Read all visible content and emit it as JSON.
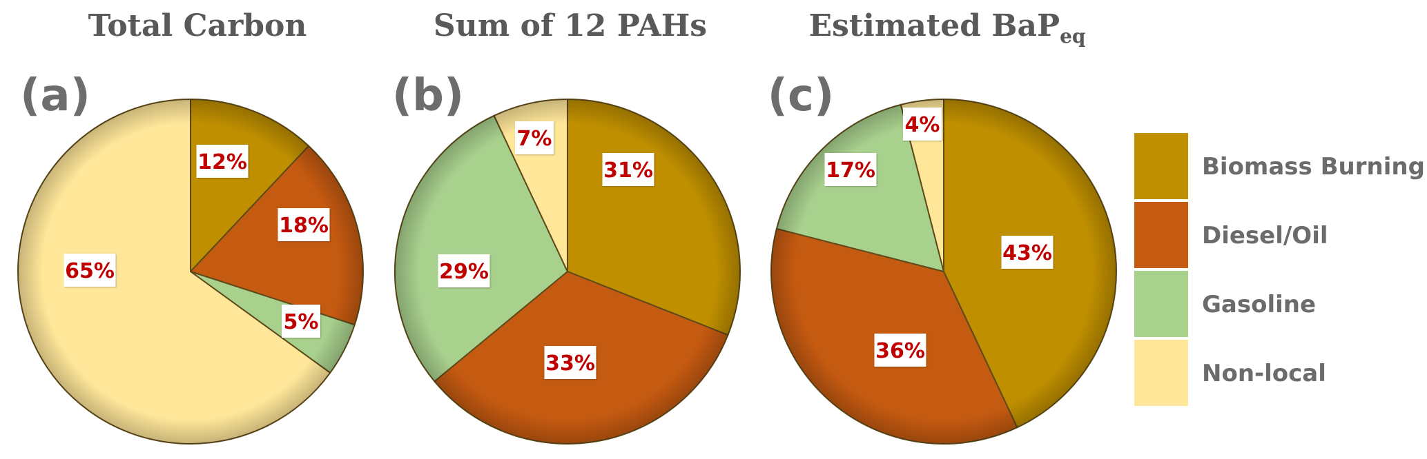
{
  "chart_data": [
    {
      "type": "pie",
      "panel_label": "(a)",
      "title": "Total Carbon",
      "title_sub": "",
      "slices": [
        {
          "name": "Biomass Burning",
          "value": 12,
          "label": "12%"
        },
        {
          "name": "Diesel/Oil",
          "value": 18,
          "label": "18%"
        },
        {
          "name": "Gasoline",
          "value": 5,
          "label": "5%"
        },
        {
          "name": "Non-local",
          "value": 65,
          "label": "65%"
        }
      ]
    },
    {
      "type": "pie",
      "panel_label": "(b)",
      "title": "Sum of 12 PAHs",
      "title_sub": "",
      "slices": [
        {
          "name": "Biomass Burning",
          "value": 31,
          "label": "31%"
        },
        {
          "name": "Diesel/Oil",
          "value": 33,
          "label": "33%"
        },
        {
          "name": "Gasoline",
          "value": 29,
          "label": "29%"
        },
        {
          "name": "Non-local",
          "value": 7,
          "label": "7%"
        }
      ]
    },
    {
      "type": "pie",
      "panel_label": "(c)",
      "title": "Estimated BaP",
      "title_sub": "eq",
      "slices": [
        {
          "name": "Biomass Burning",
          "value": 43,
          "label": "43%"
        },
        {
          "name": "Diesel/Oil",
          "value": 36,
          "label": "36%"
        },
        {
          "name": "Gasoline",
          "value": 17,
          "label": "17%"
        },
        {
          "name": "Non-local",
          "value": 4,
          "label": "4%"
        }
      ]
    }
  ],
  "legend": {
    "placement": "right",
    "items": [
      {
        "name": "Biomass Burning",
        "color": "#bf8f00"
      },
      {
        "name": "Diesel/Oil",
        "color": "#c55a11"
      },
      {
        "name": "Gasoline",
        "color": "#a9d18e"
      },
      {
        "name": "Non-local",
        "color": "#ffe699"
      }
    ]
  }
}
